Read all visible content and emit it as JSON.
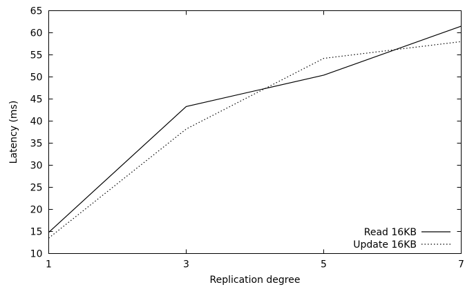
{
  "chart_data": {
    "type": "line",
    "xlabel": "Replication degree",
    "ylabel": "Latency (ms)",
    "xlim": [
      1,
      7
    ],
    "ylim": [
      10,
      65
    ],
    "xticks": [
      1,
      3,
      5,
      7
    ],
    "yticks": [
      10,
      15,
      20,
      25,
      30,
      35,
      40,
      45,
      50,
      55,
      60,
      65
    ],
    "grid": false,
    "legend_position": "bottom-right",
    "series": [
      {
        "name": "Read 16KB",
        "line_style": "solid",
        "color": "#000000",
        "x": [
          1,
          3,
          5,
          7
        ],
        "y": [
          14.8,
          43.3,
          50.4,
          61.5
        ]
      },
      {
        "name": "Update 16KB",
        "line_style": "dotted",
        "color": "#000000",
        "x": [
          1,
          3,
          5,
          7
        ],
        "y": [
          13.5,
          38.2,
          54.2,
          58.0
        ]
      }
    ]
  }
}
